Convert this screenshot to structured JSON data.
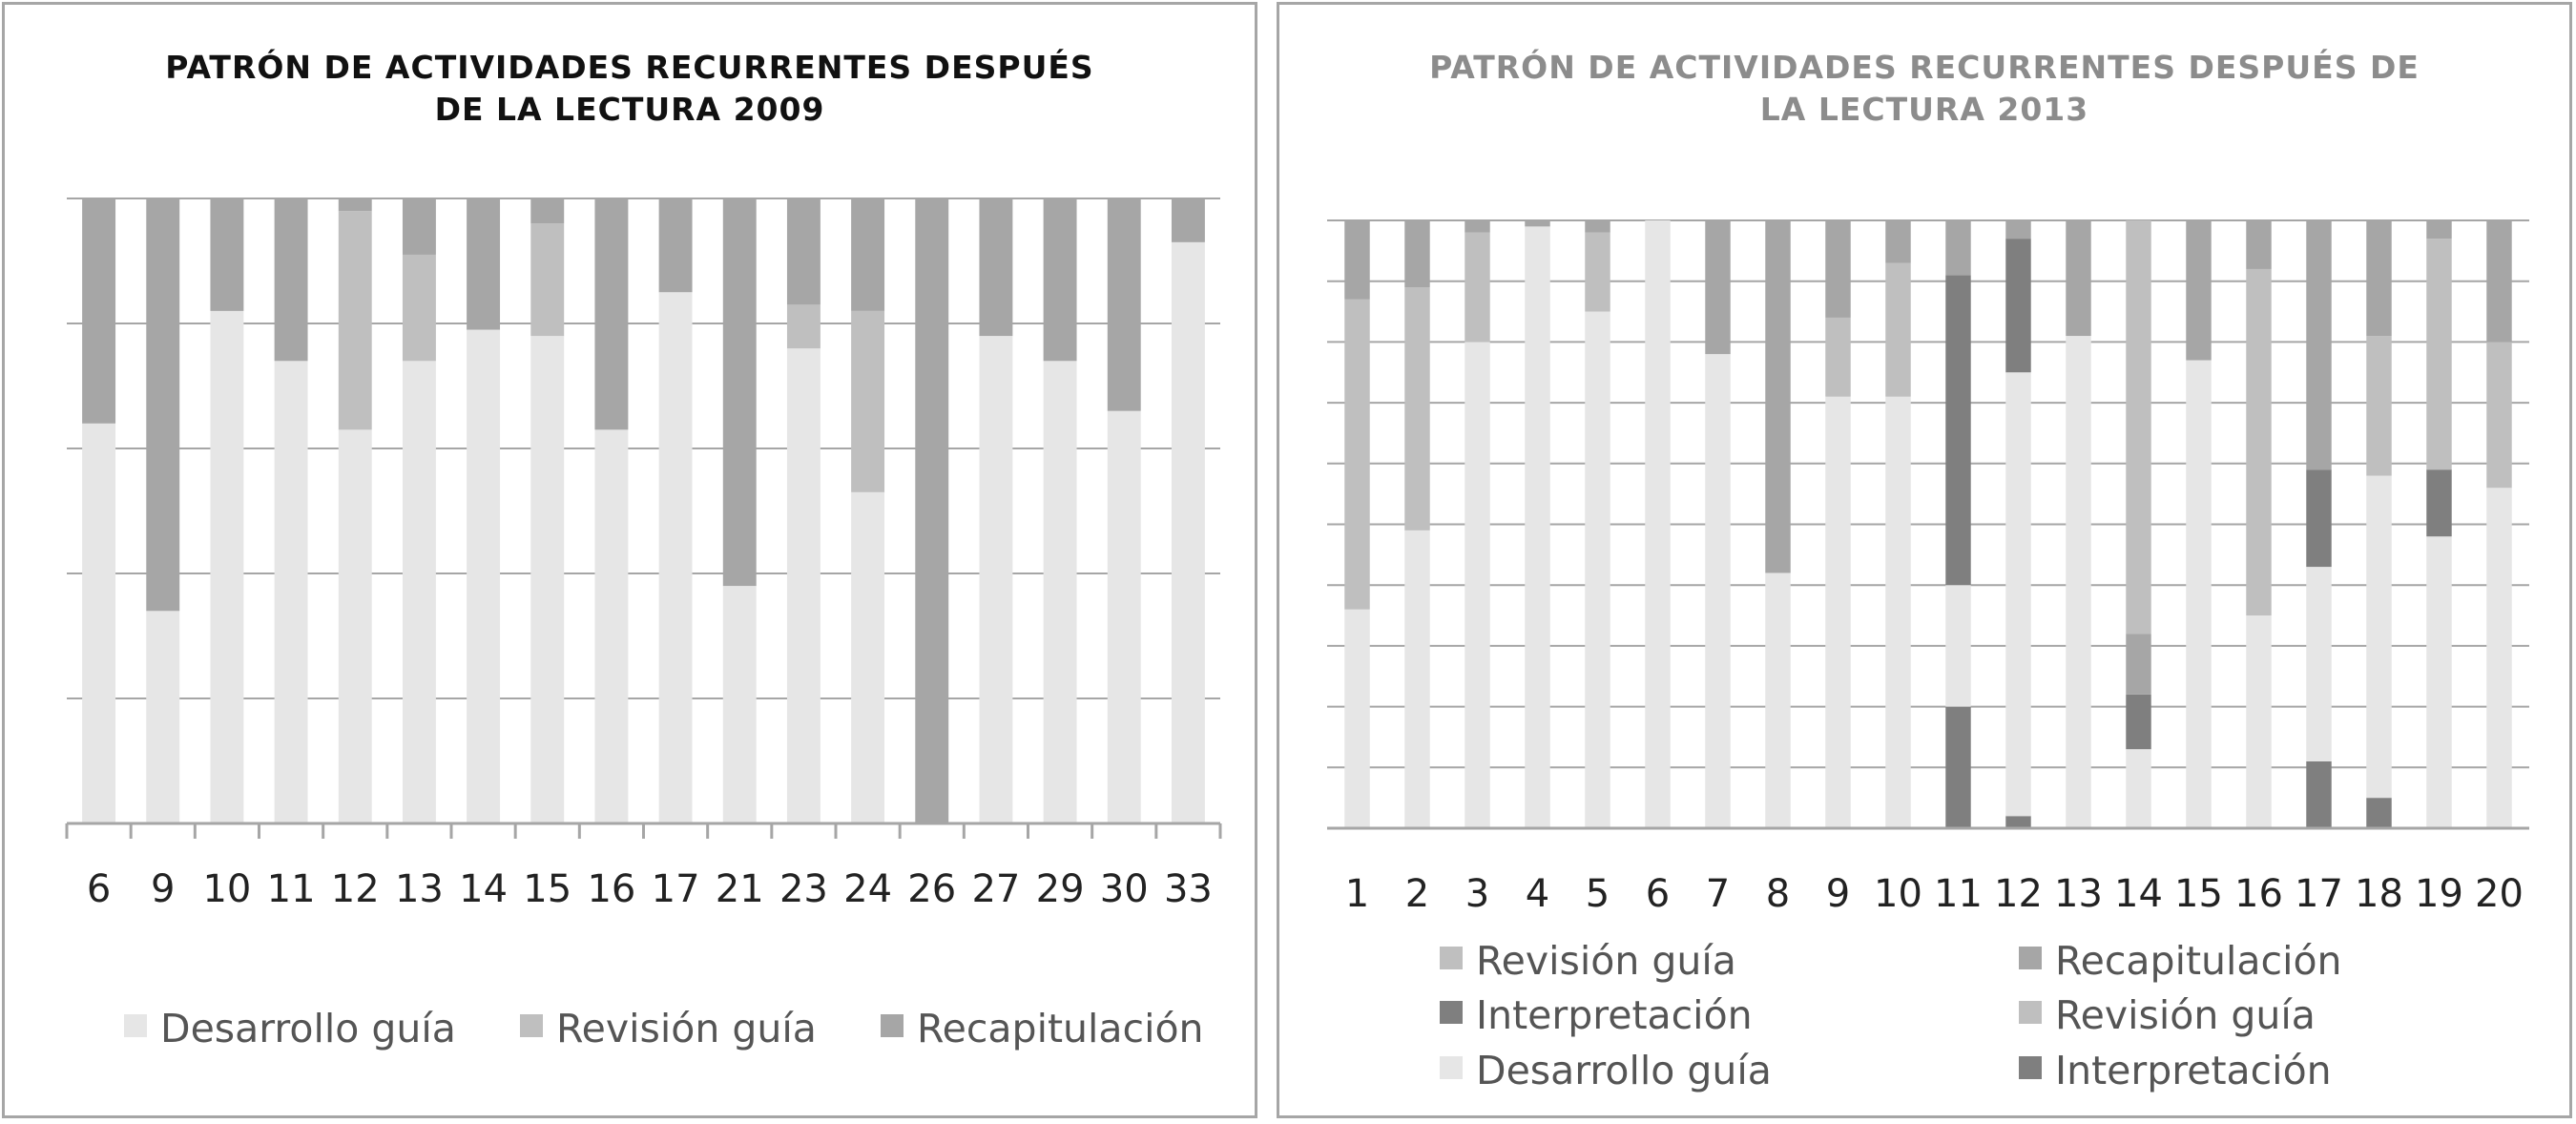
{
  "colors": {
    "desarrollo": "#e6e6e6",
    "revision": "#bfbfbf",
    "recap": "#a6a6a6",
    "interpretacion": "#7f7f7f",
    "grid": "#a6a6a6"
  },
  "chart_data": [
    {
      "type": "bar",
      "stacked": true,
      "normalized": true,
      "title_lines": [
        "PATRÓN DE ACTIVIDADES RECURRENTES DESPUÉS",
        "DE LA LECTURA 2009"
      ],
      "categories": [
        "6",
        "9",
        "10",
        "11",
        "12",
        "13",
        "14",
        "15",
        "16",
        "17",
        "21",
        "23",
        "24",
        "26",
        "27",
        "29",
        "30",
        "33"
      ],
      "ylim": [
        0,
        100
      ],
      "grid": true,
      "legend_position": "bottom",
      "series": [
        {
          "name": "Desarrollo guía",
          "color_key": "desarrollo",
          "values": [
            64,
            34,
            82,
            74,
            63,
            74,
            79,
            78,
            63,
            85,
            38,
            76,
            53,
            0,
            78,
            74,
            66,
            93
          ]
        },
        {
          "name": "Revisión guía",
          "color_key": "revision",
          "values": [
            0,
            0,
            0,
            0,
            35,
            17,
            0,
            18,
            0,
            0,
            0,
            7,
            29,
            0,
            0,
            0,
            0,
            0
          ]
        },
        {
          "name": "Recapitulación",
          "color_key": "recap",
          "values": [
            36,
            66,
            18,
            26,
            2,
            9,
            21,
            4,
            37,
            15,
            62,
            17,
            18,
            100,
            22,
            26,
            34,
            7
          ]
        }
      ]
    },
    {
      "type": "bar",
      "stacked": true,
      "normalized": true,
      "title_lines": [
        "PATRÓN DE ACTIVIDADES RECURRENTES DESPUÉS DE",
        "LA LECTURA 2013"
      ],
      "categories": [
        "1",
        "2",
        "3",
        "4",
        "5",
        "6",
        "7",
        "8",
        "9",
        "10",
        "11",
        "12",
        "13",
        "14",
        "15",
        "16",
        "17",
        "18",
        "19",
        "20"
      ],
      "ylim": [
        0,
        100
      ],
      "grid": true,
      "legend_position": "bottom",
      "series": [
        {
          "name": "Interpretación",
          "color_key": "interpretacion",
          "values": [
            0,
            0,
            0,
            0,
            0,
            0,
            0,
            0,
            0,
            0,
            20,
            2,
            0,
            0,
            0,
            0,
            11,
            5,
            0,
            0
          ]
        },
        {
          "name": "Desarrollo guía",
          "color_key": "desarrollo",
          "values": [
            36,
            49,
            80,
            99,
            85,
            100,
            78,
            42,
            71,
            71,
            20,
            73,
            81,
            13,
            77,
            35,
            32,
            53,
            48,
            56
          ]
        },
        {
          "name": "Revisión guía",
          "color_key": "revision",
          "values": [
            0,
            0,
            0,
            0,
            0,
            0,
            0,
            0,
            0,
            0,
            0,
            0,
            0,
            0,
            0,
            0,
            0,
            0,
            0,
            0
          ]
        },
        {
          "name": "Interpretación",
          "color_key": "interpretacion",
          "values": [
            0,
            0,
            0,
            0,
            0,
            0,
            0,
            0,
            0,
            0,
            51,
            22,
            0,
            9,
            0,
            0,
            16,
            0,
            11,
            0
          ]
        },
        {
          "name": "Recapitulación",
          "color_key": "recap",
          "values": [
            0,
            0,
            0,
            0,
            0,
            0,
            0,
            0,
            0,
            0,
            0,
            0,
            0,
            10,
            0,
            0,
            0,
            0,
            0,
            0
          ]
        },
        {
          "name": "Revisión guía",
          "color_key": "revision",
          "values": [
            51,
            40,
            18,
            0,
            13,
            0,
            0,
            0,
            13,
            22,
            0,
            0,
            0,
            68,
            0,
            57,
            0,
            23,
            38,
            24
          ]
        },
        {
          "name": "Recapitulación",
          "color_key": "recap",
          "values": [
            13,
            11,
            2,
            1,
            2,
            0,
            22,
            58,
            16,
            7,
            9,
            3,
            19,
            0,
            23,
            8,
            41,
            19,
            3,
            20
          ]
        }
      ],
      "legend_entries": [
        {
          "name": "Revisión guía",
          "color_key": "revision"
        },
        {
          "name": "Recapitulación",
          "color_key": "recap"
        },
        {
          "name": "Interpretación",
          "color_key": "interpretacion"
        },
        {
          "name": "Revisión guía",
          "color_key": "revision"
        },
        {
          "name": "Desarrollo guía",
          "color_key": "desarrollo"
        },
        {
          "name": "Interpretación",
          "color_key": "interpretacion"
        }
      ]
    }
  ]
}
